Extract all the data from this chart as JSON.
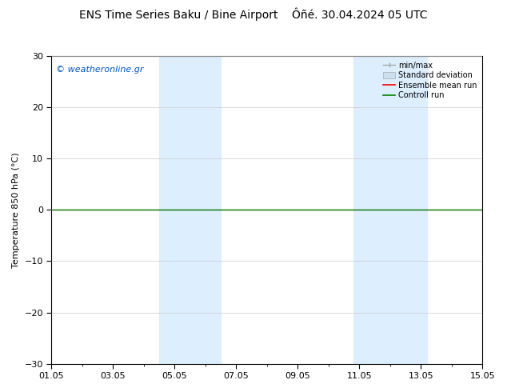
{
  "title": "ENS Time Series Baku / Bine Airport    Ôñé. 30.04.2024 05 UTC",
  "ylabel": "Temperature 850 hPa (°C)",
  "watermark": "© weatheronline.gr",
  "ylim": [
    -30,
    30
  ],
  "yticks": [
    -30,
    -20,
    -10,
    0,
    10,
    20,
    30
  ],
  "xlim": [
    0,
    14
  ],
  "xtick_labels": [
    "01.05",
    "03.05",
    "05.05",
    "07.05",
    "09.05",
    "11.05",
    "13.05",
    "15.05"
  ],
  "xtick_positions": [
    0,
    2,
    4,
    6,
    8,
    10,
    12,
    14
  ],
  "shaded_bands": [
    {
      "x_start": 3.5,
      "x_end": 5.5
    },
    {
      "x_start": 9.8,
      "x_end": 12.2
    }
  ],
  "control_run_y": 0.0,
  "ensemble_mean_y": 0.0,
  "bg_color": "#ffffff",
  "shade_color": "#ddeeff",
  "grid_color": "#cccccc",
  "control_run_color": "#008000",
  "ensemble_mean_color": "#ff0000",
  "watermark_color": "#0055cc",
  "legend_minmax_color": "#aaaaaa",
  "legend_stddev_color": "#cce0f0",
  "title_fontsize": 10,
  "axis_fontsize": 8,
  "tick_fontsize": 8,
  "watermark_fontsize": 8
}
